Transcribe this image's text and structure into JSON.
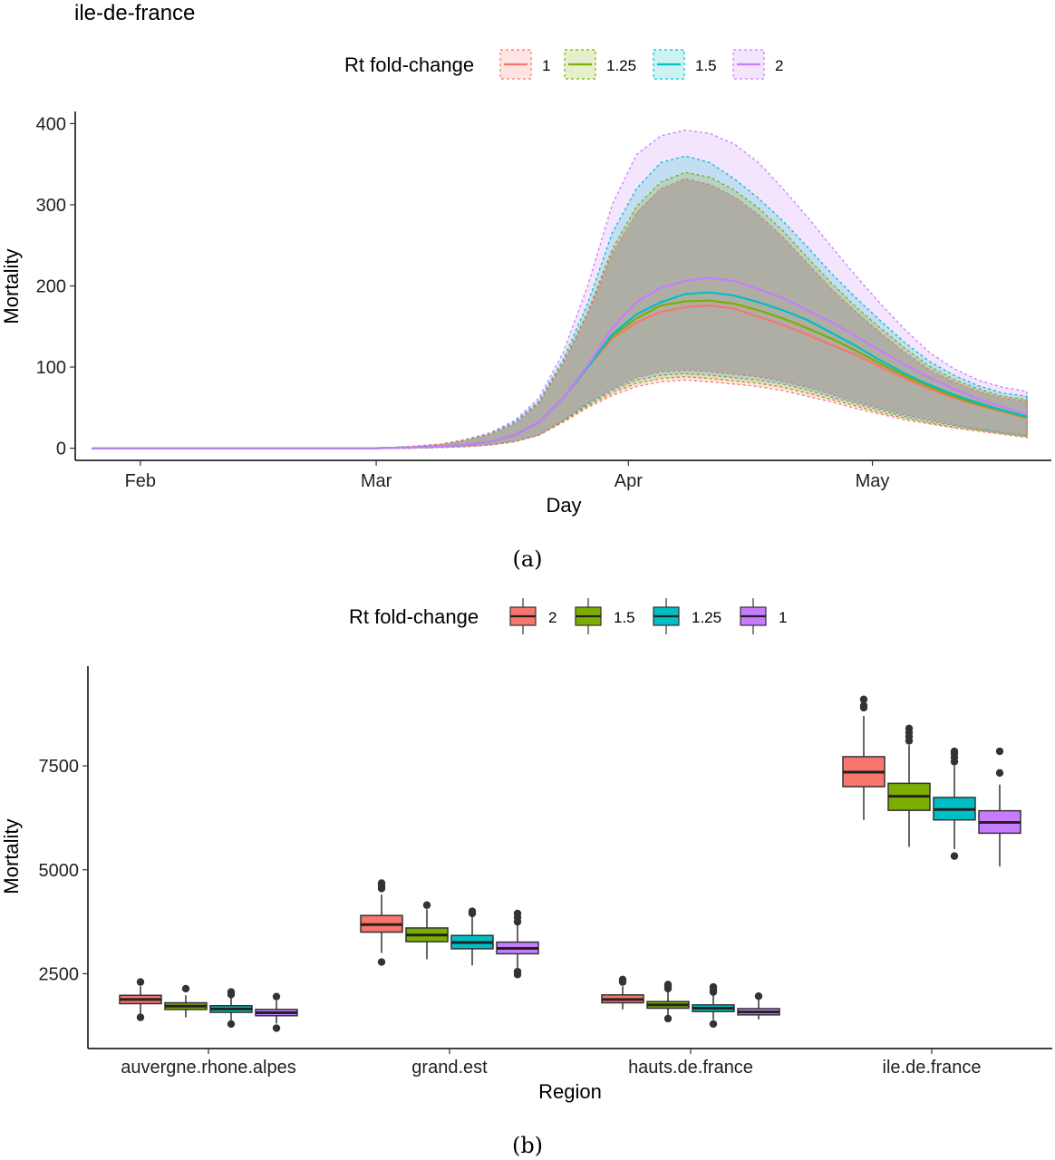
{
  "figure": {
    "caption_a": "(a)",
    "caption_b": "(b)"
  },
  "colors": {
    "c1": "#F8766D",
    "c2": "#7CAE00",
    "c3": "#00BFC4",
    "c4": "#C77CFF"
  },
  "chart_data": [
    {
      "type": "area",
      "title": "ile-de-france",
      "xlabel": "Day",
      "ylabel": "Mortality",
      "legend_title": "Rt fold-change",
      "legend_position": "top",
      "grid": false,
      "ylim": [
        -15,
        415
      ],
      "yticks": [
        0,
        100,
        200,
        300,
        400
      ],
      "xlim": [
        "2020-01-24",
        "2020-05-23"
      ],
      "xticks": [
        {
          "label": "Feb",
          "date": "2020-02-01"
        },
        {
          "label": "Mar",
          "date": "2020-03-01"
        },
        {
          "label": "Apr",
          "date": "2020-04-01"
        },
        {
          "label": "May",
          "date": "2020-05-01"
        }
      ],
      "x": [
        "2020-01-26",
        "2020-02-01",
        "2020-02-08",
        "2020-02-15",
        "2020-02-22",
        "2020-03-01",
        "2020-03-05",
        "2020-03-09",
        "2020-03-12",
        "2020-03-15",
        "2020-03-18",
        "2020-03-21",
        "2020-03-24",
        "2020-03-27",
        "2020-03-30",
        "2020-04-02",
        "2020-04-05",
        "2020-04-08",
        "2020-04-11",
        "2020-04-14",
        "2020-04-17",
        "2020-04-20",
        "2020-04-23",
        "2020-04-26",
        "2020-04-29",
        "2020-05-02",
        "2020-05-05",
        "2020-05-08",
        "2020-05-11",
        "2020-05-14",
        "2020-05-17",
        "2020-05-20"
      ],
      "series": [
        {
          "name": "1",
          "color": "#F8766D",
          "median": [
            0,
            0,
            0,
            0,
            0,
            0,
            1,
            2,
            4,
            8,
            16,
            32,
            62,
            100,
            135,
            155,
            168,
            174,
            176,
            172,
            162,
            152,
            140,
            127,
            115,
            100,
            86,
            73,
            62,
            53,
            45,
            37
          ],
          "lower": [
            0,
            0,
            0,
            0,
            0,
            0,
            0,
            1,
            2,
            4,
            8,
            16,
            32,
            50,
            65,
            76,
            82,
            84,
            82,
            79,
            76,
            71,
            64,
            57,
            49,
            42,
            35,
            30,
            25,
            21,
            17,
            13
          ],
          "upper": [
            0,
            0,
            0,
            0,
            0,
            0,
            2,
            5,
            10,
            17,
            30,
            55,
            105,
            165,
            240,
            290,
            320,
            332,
            325,
            310,
            288,
            260,
            228,
            196,
            168,
            142,
            118,
            97,
            82,
            70,
            62,
            58
          ]
        },
        {
          "name": "1.25",
          "color": "#7CAE00",
          "median": [
            0,
            0,
            0,
            0,
            0,
            0,
            1,
            2,
            4,
            8,
            16,
            32,
            62,
            100,
            138,
            160,
            176,
            181,
            182,
            178,
            170,
            160,
            148,
            135,
            120,
            104,
            89,
            76,
            64,
            54,
            46,
            38
          ],
          "lower": [
            0,
            0,
            0,
            0,
            0,
            0,
            0,
            1,
            2,
            4,
            8,
            16,
            33,
            52,
            68,
            80,
            86,
            88,
            86,
            83,
            80,
            75,
            68,
            60,
            52,
            44,
            37,
            31,
            26,
            22,
            18,
            14
          ],
          "upper": [
            0,
            0,
            0,
            0,
            0,
            0,
            2,
            5,
            10,
            17,
            30,
            56,
            106,
            168,
            245,
            298,
            328,
            340,
            334,
            318,
            296,
            268,
            235,
            203,
            174,
            148,
            123,
            101,
            85,
            73,
            64,
            60
          ]
        },
        {
          "name": "1.5",
          "color": "#00BFC4",
          "median": [
            0,
            0,
            0,
            0,
            0,
            0,
            1,
            2,
            4,
            8,
            16,
            32,
            62,
            100,
            140,
            165,
            180,
            190,
            192,
            188,
            180,
            170,
            158,
            142,
            126,
            108,
            92,
            78,
            66,
            56,
            47,
            39
          ],
          "lower": [
            0,
            0,
            0,
            0,
            0,
            0,
            0,
            1,
            2,
            4,
            8,
            16,
            34,
            54,
            71,
            84,
            90,
            92,
            90,
            87,
            84,
            79,
            72,
            63,
            55,
            47,
            39,
            33,
            28,
            23,
            19,
            15
          ],
          "upper": [
            0,
            0,
            0,
            0,
            0,
            0,
            2,
            5,
            10,
            18,
            32,
            58,
            110,
            178,
            265,
            320,
            352,
            360,
            352,
            332,
            308,
            280,
            248,
            215,
            185,
            157,
            130,
            107,
            90,
            77,
            68,
            64
          ]
        },
        {
          "name": "2",
          "color": "#C77CFF",
          "median": [
            0,
            0,
            0,
            0,
            0,
            0,
            1,
            2,
            4,
            8,
            16,
            32,
            62,
            102,
            148,
            180,
            198,
            206,
            210,
            206,
            196,
            185,
            170,
            155,
            138,
            120,
            103,
            87,
            73,
            61,
            51,
            42
          ],
          "lower": [
            0,
            0,
            0,
            0,
            0,
            0,
            0,
            1,
            2,
            4,
            8,
            16,
            34,
            55,
            73,
            87,
            94,
            96,
            94,
            91,
            88,
            82,
            75,
            66,
            57,
            49,
            41,
            35,
            29,
            24,
            20,
            16
          ],
          "upper": [
            0,
            0,
            0,
            0,
            0,
            0,
            2,
            5,
            11,
            19,
            34,
            62,
            118,
            200,
            300,
            362,
            385,
            392,
            388,
            375,
            352,
            320,
            285,
            248,
            212,
            178,
            146,
            118,
            98,
            84,
            75,
            70
          ]
        }
      ]
    },
    {
      "type": "box",
      "xlabel": "Region",
      "ylabel": "Mortality",
      "legend_title": "Rt fold-change",
      "legend_position": "top",
      "grid": false,
      "ylim": [
        700,
        9900
      ],
      "yticks": [
        2500,
        5000,
        7500
      ],
      "categories": [
        "auvergne.rhone.alpes",
        "grand.est",
        "hauts.de.france",
        "ile.de.france"
      ],
      "groups": [
        {
          "name": "2",
          "color": "#F8766D",
          "boxes": [
            {
              "whisker_low": 1500,
              "q1": 1780,
              "median": 1880,
              "q3": 1980,
              "whisker_high": 2200,
              "outliers": [
                1450,
                2300
              ]
            },
            {
              "whisker_low": 3000,
              "q1": 3500,
              "median": 3680,
              "q3": 3900,
              "whisker_high": 4400,
              "outliers": [
                2780,
                4550,
                4620,
                4680
              ]
            },
            {
              "whisker_low": 1640,
              "q1": 1800,
              "median": 1880,
              "q3": 1990,
              "whisker_high": 2200,
              "outliers": [
                2300,
                2360
              ]
            },
            {
              "whisker_low": 6200,
              "q1": 7000,
              "median": 7350,
              "q3": 7720,
              "whisker_high": 8700,
              "outliers": [
                8900,
                8950,
                9100
              ]
            }
          ]
        },
        {
          "name": "1.5",
          "color": "#7CAE00",
          "boxes": [
            {
              "whisker_low": 1450,
              "q1": 1640,
              "median": 1720,
              "q3": 1800,
              "whisker_high": 1980,
              "outliers": [
                2140
              ]
            },
            {
              "whisker_low": 2850,
              "q1": 3270,
              "median": 3430,
              "q3": 3600,
              "whisker_high": 4050,
              "outliers": [
                4150
              ]
            },
            {
              "whisker_low": 1500,
              "q1": 1670,
              "median": 1750,
              "q3": 1830,
              "whisker_high": 2050,
              "outliers": [
                1420,
                2140,
                2200,
                2240
              ]
            },
            {
              "whisker_low": 5550,
              "q1": 6430,
              "median": 6770,
              "q3": 7080,
              "whisker_high": 8000,
              "outliers": [
                8100,
                8200,
                8300,
                8400
              ]
            }
          ]
        },
        {
          "name": "1.25",
          "color": "#00BFC4",
          "boxes": [
            {
              "whisker_low": 1380,
              "q1": 1570,
              "median": 1650,
              "q3": 1730,
              "whisker_high": 1930,
              "outliers": [
                1290,
                2000,
                2060
              ]
            },
            {
              "whisker_low": 2700,
              "q1": 3100,
              "median": 3250,
              "q3": 3420,
              "whisker_high": 3880,
              "outliers": [
                3950,
                4000
              ]
            },
            {
              "whisker_low": 1390,
              "q1": 1590,
              "median": 1670,
              "q3": 1750,
              "whisker_high": 1980,
              "outliers": [
                1290,
                2060,
                2120,
                2180
              ]
            },
            {
              "whisker_low": 5500,
              "q1": 6200,
              "median": 6450,
              "q3": 6740,
              "whisker_high": 7500,
              "outliers": [
                5330,
                7600,
                7700,
                7800,
                7850
              ]
            }
          ]
        },
        {
          "name": "1",
          "color": "#C77CFF",
          "boxes": [
            {
              "whisker_low": 1300,
              "q1": 1490,
              "median": 1560,
              "q3": 1640,
              "whisker_high": 1850,
              "outliers": [
                1190,
                1950
              ]
            },
            {
              "whisker_low": 2620,
              "q1": 2980,
              "median": 3110,
              "q3": 3260,
              "whisker_high": 3680,
              "outliers": [
                2480,
                2550,
                3750,
                3850,
                3950
              ]
            },
            {
              "whisker_low": 1400,
              "q1": 1510,
              "median": 1580,
              "q3": 1660,
              "whisker_high": 1880,
              "outliers": [
                1960
              ]
            },
            {
              "whisker_low": 5080,
              "q1": 5880,
              "median": 6140,
              "q3": 6420,
              "whisker_high": 7050,
              "outliers": [
                7330,
                7850
              ]
            }
          ]
        }
      ]
    }
  ]
}
